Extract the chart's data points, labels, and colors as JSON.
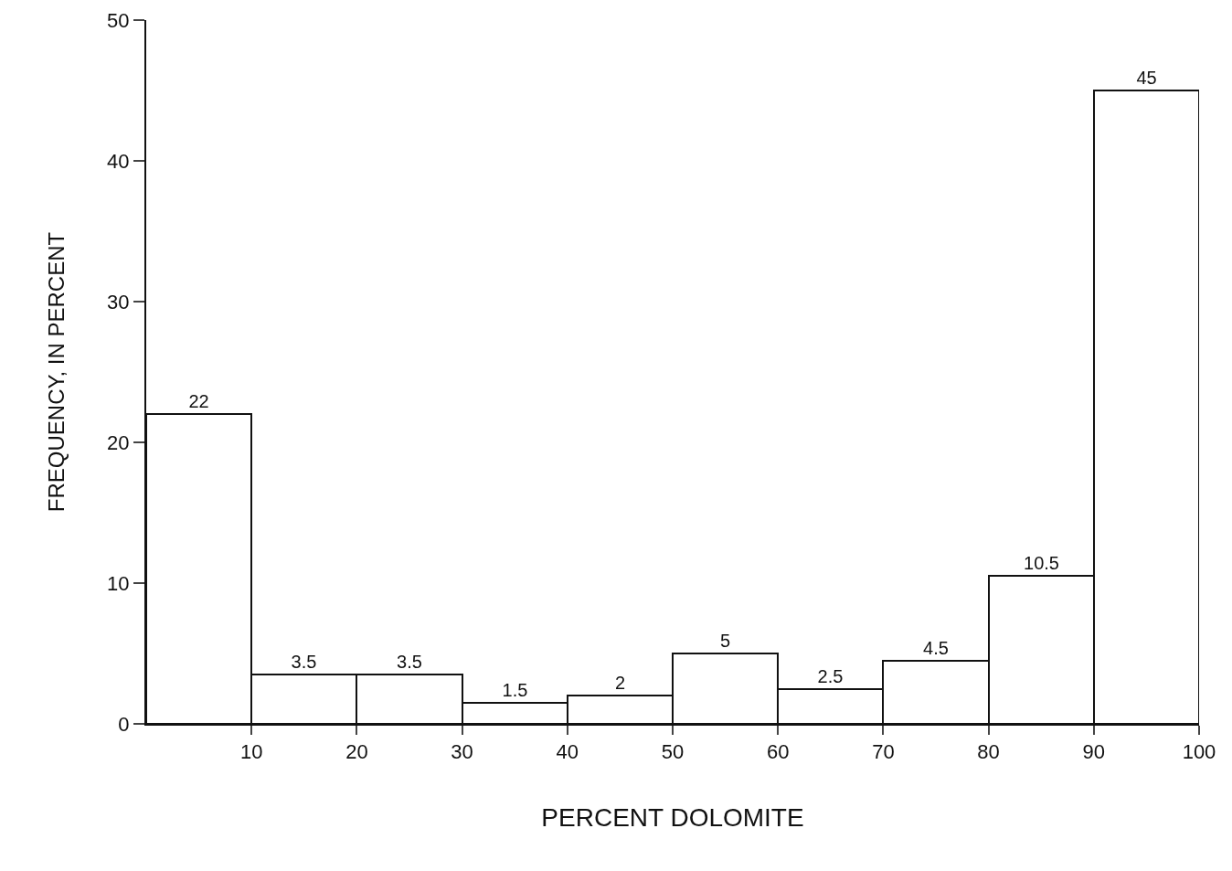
{
  "chart_data": {
    "type": "histogram",
    "xlabel": "PERCENT DOLOMITE",
    "ylabel": "FREQUENCY, IN PERCENT",
    "bins": [
      0,
      10,
      20,
      30,
      40,
      50,
      60,
      70,
      80,
      90,
      100
    ],
    "values": [
      22,
      3.5,
      3.5,
      1.5,
      2,
      5,
      2.5,
      4.5,
      10.5,
      45
    ],
    "color": "#ffffff",
    "data_labels": true,
    "grid": false,
    "legend": false,
    "xlim": [
      0,
      100
    ],
    "xticks": [
      10,
      20,
      30,
      40,
      50,
      60,
      70,
      80,
      90,
      100
    ],
    "ylim": [
      0,
      50
    ],
    "yticks": [
      0,
      10,
      20,
      30,
      40,
      50
    ]
  }
}
